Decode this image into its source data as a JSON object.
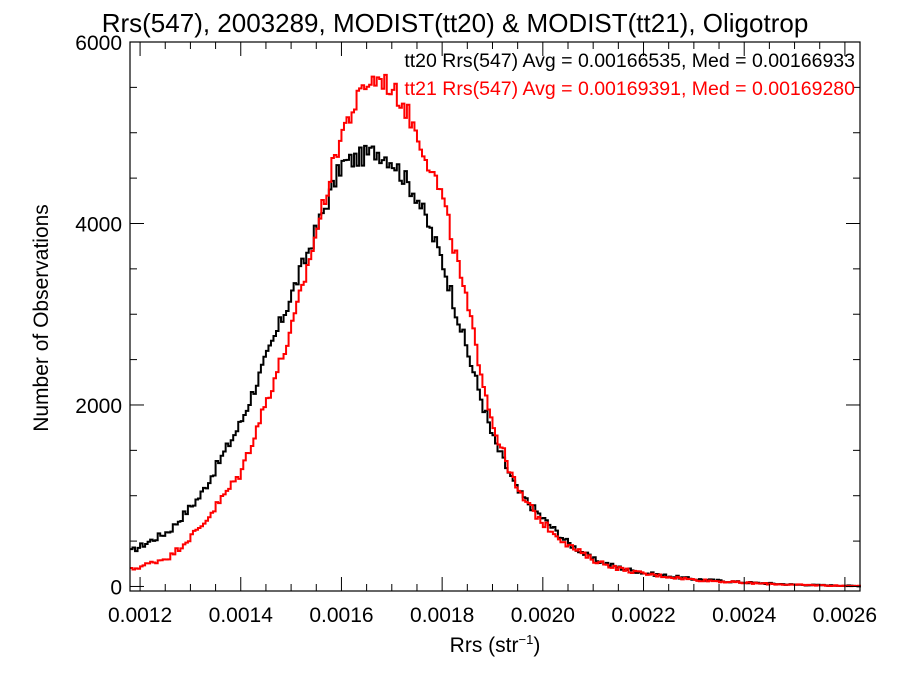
{
  "chart_data": {
    "type": "histogram-step",
    "title": "Rrs(547), 2003289, MODIST(tt20) & MODIST(tt21), Oligotrop",
    "xlabel_main": "Rrs (str",
    "xlabel_sup": "−1",
    "xlabel_close": ")",
    "ylabel": "Number of Observations",
    "xlim": [
      0.00118,
      0.00263
    ],
    "ylim": [
      -50,
      6000
    ],
    "x_ticks": [
      0.0012,
      0.0014,
      0.0016,
      0.0018,
      0.002,
      0.0022,
      0.0024,
      0.0026
    ],
    "x_tick_labels": [
      "0.0012",
      "0.0014",
      "0.0016",
      "0.0018",
      "0.0020",
      "0.0022",
      "0.0024",
      "0.0026"
    ],
    "y_ticks": [
      0,
      2000,
      4000,
      6000
    ],
    "y_tick_labels": [
      "0",
      "2000",
      "4000",
      "6000"
    ],
    "bin_width": 5e-06,
    "series": [
      {
        "name": "tt20",
        "color": "#000000",
        "legend": "tt20 Rrs(547) Avg = 0.00166535, Med = 0.00166933",
        "peak_x": 0.00167,
        "peak_y": 4800,
        "sigma_left": 0.000105,
        "sigma_right": 0.000115,
        "tail_base": [
          [
            0.00118,
            380
          ],
          [
            0.00126,
            620
          ],
          [
            0.00132,
            1000
          ],
          [
            0.0014,
            1800
          ],
          [
            0.0015,
            3200
          ],
          [
            0.0016,
            4650
          ],
          [
            0.00167,
            4800
          ],
          [
            0.0017,
            4700
          ],
          [
            0.00175,
            4300
          ],
          [
            0.0018,
            3600
          ],
          [
            0.00185,
            2600
          ],
          [
            0.0019,
            1650
          ],
          [
            0.00195,
            1050
          ],
          [
            0.002,
            750
          ],
          [
            0.00205,
            480
          ],
          [
            0.0021,
            300
          ],
          [
            0.00215,
            210
          ],
          [
            0.0022,
            150
          ],
          [
            0.0023,
            80
          ],
          [
            0.0024,
            45
          ],
          [
            0.0025,
            20
          ],
          [
            0.00263,
            5
          ]
        ]
      },
      {
        "name": "tt21",
        "color": "#ff0000",
        "legend": "tt21 Rrs(547) Avg = 0.00169391, Med = 0.00169280",
        "tail_base": [
          [
            0.00118,
            180
          ],
          [
            0.00126,
            330
          ],
          [
            0.00132,
            650
          ],
          [
            0.0014,
            1250
          ],
          [
            0.0015,
            2800
          ],
          [
            0.0016,
            5000
          ],
          [
            0.00165,
            5550
          ],
          [
            0.00168,
            5600
          ],
          [
            0.00172,
            5350
          ],
          [
            0.00175,
            5000
          ],
          [
            0.0018,
            4300
          ],
          [
            0.00185,
            3100
          ],
          [
            0.0019,
            1800
          ],
          [
            0.00195,
            1050
          ],
          [
            0.002,
            700
          ],
          [
            0.00205,
            460
          ],
          [
            0.0021,
            290
          ],
          [
            0.00215,
            200
          ],
          [
            0.0022,
            140
          ],
          [
            0.0023,
            75
          ],
          [
            0.0024,
            40
          ],
          [
            0.0025,
            18
          ],
          [
            0.00263,
            4
          ]
        ]
      }
    ]
  }
}
